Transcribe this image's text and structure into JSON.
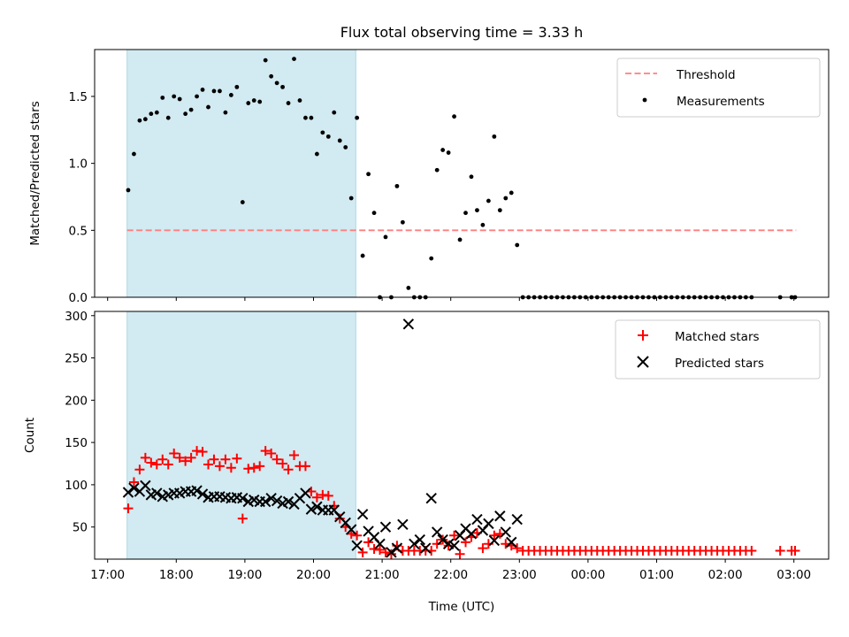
{
  "title": "Flux total observing time = 3.33 h",
  "colors": {
    "highlight": "#add8e6",
    "threshold": "#ff7f7f",
    "measurement": "#000000",
    "matched": "#ff0000",
    "predicted": "#000000"
  },
  "chart_data": [
    {
      "type": "scatter",
      "panel": "top",
      "xlabel": "",
      "ylabel": "Matched/Predicted stars",
      "ylim": [
        0,
        1.85
      ],
      "yticks": [
        0.0,
        0.5,
        1.0,
        1.5
      ],
      "ytick_labels": [
        "0.0",
        "0.5",
        "1.0",
        "1.5"
      ],
      "highlight_span": [
        "17:17",
        "20:37"
      ],
      "legend": {
        "position": "upper right",
        "entries": [
          "Threshold",
          "Measurements"
        ]
      },
      "threshold": {
        "name": "Threshold",
        "value": 0.5,
        "x_range": [
          "17:17",
          "03:02"
        ]
      },
      "series": [
        {
          "name": "Measurements",
          "x": [
            "17:18",
            "17:23",
            "17:28",
            "17:33",
            "17:38",
            "17:43",
            "17:48",
            "17:53",
            "17:58",
            "18:03",
            "18:08",
            "18:13",
            "18:18",
            "18:23",
            "18:28",
            "18:33",
            "18:38",
            "18:43",
            "18:48",
            "18:53",
            "18:58",
            "19:03",
            "19:08",
            "19:13",
            "19:18",
            "19:23",
            "19:28",
            "19:33",
            "19:38",
            "19:43",
            "19:48",
            "19:53",
            "19:58",
            "20:03",
            "20:08",
            "20:13",
            "20:18",
            "20:23",
            "20:28",
            "20:33",
            "20:38",
            "20:43",
            "20:48",
            "20:53",
            "20:58",
            "21:03",
            "21:08",
            "21:13",
            "21:18",
            "21:23",
            "21:28",
            "21:33",
            "21:38",
            "21:43",
            "21:48",
            "21:53",
            "21:58",
            "22:03",
            "22:08",
            "22:13",
            "22:18",
            "22:23",
            "22:28",
            "22:33",
            "22:38",
            "22:43",
            "22:48",
            "22:53",
            "22:58",
            "23:03",
            "23:08",
            "23:13",
            "23:18",
            "23:23",
            "23:28",
            "23:33",
            "23:38",
            "23:43",
            "23:48",
            "23:53",
            "23:58",
            "00:03",
            "00:08",
            "00:13",
            "00:18",
            "00:23",
            "00:28",
            "00:33",
            "00:38",
            "00:43",
            "00:48",
            "00:53",
            "00:58",
            "01:03",
            "01:08",
            "01:13",
            "01:18",
            "01:23",
            "01:28",
            "01:33",
            "01:38",
            "01:43",
            "01:48",
            "01:53",
            "01:58",
            "02:03",
            "02:08",
            "02:13",
            "02:18",
            "02:23",
            "02:48",
            "02:58",
            "03:01"
          ],
          "y": [
            0.8,
            1.07,
            1.32,
            1.33,
            1.37,
            1.38,
            1.49,
            1.34,
            1.5,
            1.48,
            1.37,
            1.4,
            1.5,
            1.55,
            1.42,
            1.54,
            1.54,
            1.38,
            1.51,
            1.57,
            0.71,
            1.45,
            1.47,
            1.46,
            1.77,
            1.65,
            1.6,
            1.57,
            1.45,
            1.78,
            1.47,
            1.34,
            1.34,
            1.07,
            1.23,
            1.2,
            1.38,
            1.17,
            1.12,
            0.74,
            1.34,
            0.31,
            0.92,
            0.63,
            0.0,
            0.45,
            0.0,
            0.83,
            0.56,
            0.07,
            0.0,
            0.0,
            0.0,
            0.29,
            0.95,
            1.1,
            1.08,
            1.35,
            0.43,
            0.63,
            0.9,
            0.65,
            0.54,
            0.72,
            1.2,
            0.65,
            0.74,
            0.78,
            0.39,
            0,
            0,
            0,
            0,
            0,
            0,
            0,
            0,
            0,
            0,
            0,
            0,
            0,
            0,
            0,
            0,
            0,
            0,
            0,
            0,
            0,
            0,
            0,
            0,
            0,
            0,
            0,
            0,
            0,
            0,
            0,
            0,
            0,
            0,
            0,
            0,
            0,
            0,
            0,
            0,
            0,
            0,
            0,
            0
          ]
        }
      ]
    },
    {
      "type": "scatter",
      "panel": "bottom",
      "xlabel": "Time (UTC)",
      "ylabel": "Count",
      "ylim": [
        12,
        305
      ],
      "yticks": [
        50,
        100,
        150,
        200,
        250,
        300
      ],
      "xticks": [
        "17:00",
        "18:00",
        "19:00",
        "20:00",
        "21:00",
        "22:00",
        "23:00",
        "00:00",
        "01:00",
        "02:00",
        "03:00"
      ],
      "highlight_span": [
        "17:17",
        "20:37"
      ],
      "legend": {
        "position": "upper right",
        "entries": [
          "Matched stars",
          "Predicted stars"
        ]
      },
      "series": [
        {
          "name": "Matched stars",
          "marker": "+",
          "x": [
            "17:18",
            "17:23",
            "17:28",
            "17:33",
            "17:38",
            "17:43",
            "17:48",
            "17:53",
            "17:58",
            "18:03",
            "18:08",
            "18:13",
            "18:18",
            "18:23",
            "18:28",
            "18:33",
            "18:38",
            "18:43",
            "18:48",
            "18:53",
            "18:58",
            "19:03",
            "19:08",
            "19:13",
            "19:18",
            "19:23",
            "19:28",
            "19:33",
            "19:38",
            "19:43",
            "19:48",
            "19:53",
            "19:58",
            "20:03",
            "20:08",
            "20:13",
            "20:18",
            "20:23",
            "20:28",
            "20:33",
            "20:38",
            "20:43",
            "20:48",
            "20:53",
            "20:58",
            "21:03",
            "21:08",
            "21:13",
            "21:18",
            "21:23",
            "21:28",
            "21:33",
            "21:38",
            "21:43",
            "21:48",
            "21:53",
            "21:58",
            "22:03",
            "22:08",
            "22:13",
            "22:18",
            "22:23",
            "22:28",
            "22:33",
            "22:38",
            "22:43",
            "22:48",
            "22:53",
            "22:58",
            "23:03",
            "23:08",
            "23:13",
            "23:18",
            "23:23",
            "23:28",
            "23:33",
            "23:38",
            "23:43",
            "23:48",
            "23:53",
            "23:58",
            "00:03",
            "00:08",
            "00:13",
            "00:18",
            "00:23",
            "00:28",
            "00:33",
            "00:38",
            "00:43",
            "00:48",
            "00:53",
            "00:58",
            "01:03",
            "01:08",
            "01:13",
            "01:18",
            "01:23",
            "01:28",
            "01:33",
            "01:38",
            "01:43",
            "01:48",
            "01:53",
            "01:58",
            "02:03",
            "02:08",
            "02:13",
            "02:18",
            "02:23",
            "02:48",
            "02:58",
            "03:01"
          ],
          "y": [
            72,
            103,
            118,
            132,
            126,
            124,
            130,
            124,
            137,
            132,
            128,
            132,
            140,
            139,
            124,
            130,
            122,
            130,
            120,
            131,
            60,
            119,
            120,
            122,
            140,
            137,
            130,
            125,
            118,
            135,
            122,
            122,
            92,
            85,
            88,
            87,
            75,
            60,
            50,
            42,
            40,
            20,
            32,
            24,
            23,
            20,
            18,
            28,
            22,
            22,
            22,
            22,
            22,
            22,
            30,
            35,
            28,
            40,
            18,
            32,
            38,
            43,
            25,
            30,
            40,
            42,
            30,
            28,
            25,
            22,
            22,
            22,
            22,
            22,
            22,
            22,
            22,
            22,
            22,
            22,
            22,
            22,
            22,
            22,
            22,
            22,
            22,
            22,
            22,
            22,
            22,
            22,
            22,
            22,
            22,
            22,
            22,
            22,
            22,
            22,
            22,
            22,
            22,
            22,
            22,
            22,
            22,
            22,
            22,
            22,
            22,
            22,
            22
          ]
        },
        {
          "name": "Predicted stars",
          "marker": "x",
          "x": [
            "17:18",
            "17:23",
            "17:28",
            "17:33",
            "17:38",
            "17:43",
            "17:48",
            "17:53",
            "17:58",
            "18:03",
            "18:08",
            "18:13",
            "18:18",
            "18:23",
            "18:28",
            "18:33",
            "18:38",
            "18:43",
            "18:48",
            "18:53",
            "18:58",
            "19:03",
            "19:08",
            "19:13",
            "19:18",
            "19:23",
            "19:28",
            "19:33",
            "19:38",
            "19:43",
            "19:48",
            "19:53",
            "19:58",
            "20:03",
            "20:08",
            "20:13",
            "20:18",
            "20:23",
            "20:28",
            "20:33",
            "20:38",
            "20:43",
            "20:48",
            "20:53",
            "20:58",
            "21:03",
            "21:08",
            "21:13",
            "21:18",
            "21:23",
            "21:28",
            "21:33",
            "21:38",
            "21:43",
            "21:48",
            "21:53",
            "21:58",
            "22:03",
            "22:08",
            "22:13",
            "22:18",
            "22:23",
            "22:28",
            "22:33",
            "22:38",
            "22:43",
            "22:48",
            "22:53",
            "22:58"
          ],
          "y": [
            91,
            96,
            92,
            99,
            88,
            90,
            86,
            88,
            90,
            90,
            92,
            92,
            93,
            89,
            85,
            86,
            86,
            85,
            84,
            85,
            84,
            80,
            82,
            80,
            80,
            84,
            81,
            78,
            80,
            77,
            84,
            90,
            71,
            74,
            70,
            70,
            70,
            62,
            55,
            47,
            28,
            65,
            45,
            38,
            30,
            50,
            20,
            25,
            53,
            290,
            30,
            35,
            25,
            84,
            44,
            35,
            30,
            28,
            40,
            48,
            42,
            59,
            46,
            54,
            34,
            63,
            44,
            32,
            59
          ]
        }
      ]
    }
  ]
}
